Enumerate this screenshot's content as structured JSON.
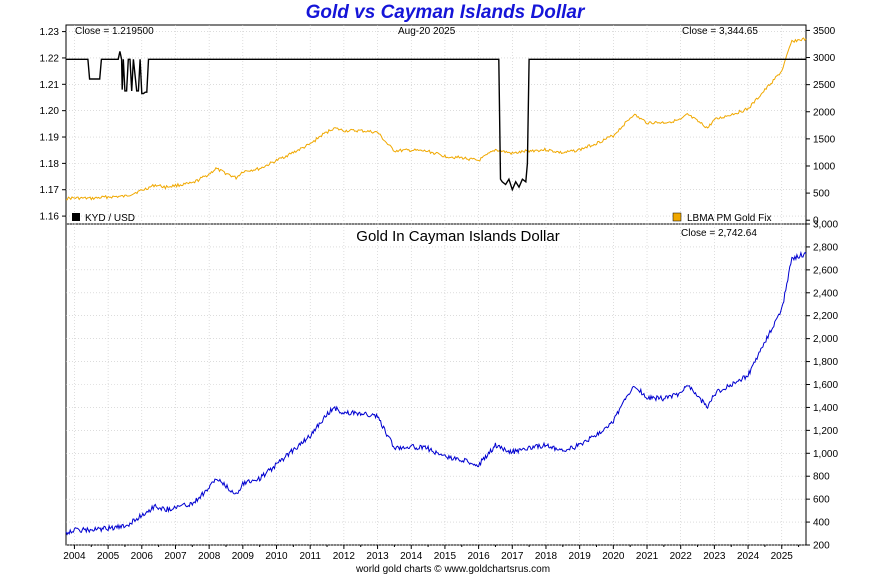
{
  "header": {
    "title": "Gold vs Cayman Islands Dollar",
    "footer": "world gold charts © www.goldchartsrus.com"
  },
  "top_panel": {
    "close_left": "Close = 1.219500",
    "date": "Aug-20  2025",
    "close_right": "Close = 3,344.65",
    "legend_left": "KYD / USD",
    "legend_right": "LBMA PM Gold Fix"
  },
  "bottom_panel": {
    "title": "Gold In Cayman Islands Dollar",
    "close": "Close = 2,742.64"
  },
  "chart_data": [
    {
      "type": "line",
      "panel": "top",
      "title": "Gold vs Cayman Islands Dollar",
      "x_ticks": [
        "2004",
        "2005",
        "2006",
        "2007",
        "2008",
        "2009",
        "2010",
        "2011",
        "2012",
        "2013",
        "2014",
        "2015",
        "2016",
        "2017",
        "2018",
        "2019",
        "2020",
        "2021",
        "2022",
        "2023",
        "2024",
        "2025"
      ],
      "xlim": [
        2003.75,
        2025.72
      ],
      "left_axis": {
        "ylim": [
          1.157,
          1.2325
        ],
        "ticks": [
          "1.16",
          "1.17",
          "1.18",
          "1.19",
          "1.20",
          "1.21",
          "1.22",
          "1.23"
        ]
      },
      "right_axis": {
        "ylim": [
          -70,
          3600
        ],
        "ticks": [
          "0",
          "500",
          "1000",
          "1500",
          "2000",
          "2500",
          "3000",
          "3500"
        ]
      },
      "series": [
        {
          "name": "KYD / USD",
          "axis": "left",
          "color": "#000000",
          "x": [
            2003.75,
            2004.4,
            2004.45,
            2004.75,
            2004.8,
            2005.3,
            2005.35,
            2005.4,
            2005.42,
            2005.45,
            2005.5,
            2005.55,
            2005.6,
            2005.65,
            2005.7,
            2005.75,
            2005.85,
            2005.9,
            2005.95,
            2006.0,
            2006.05,
            2006.1,
            2006.15,
            2006.2,
            2006.3,
            2016.6,
            2016.65,
            2016.7,
            2016.8,
            2016.9,
            2017.0,
            2017.1,
            2017.2,
            2017.3,
            2017.4,
            2017.45,
            2017.5,
            2025.72
          ],
          "y": [
            1.2195,
            1.2195,
            1.212,
            1.212,
            1.2195,
            1.2195,
            1.2225,
            1.2195,
            1.208,
            1.2195,
            1.2075,
            1.2075,
            1.2195,
            1.2195,
            1.2075,
            1.2195,
            1.2075,
            1.2075,
            1.2195,
            1.2065,
            1.2065,
            1.207,
            1.207,
            1.2195,
            1.2195,
            1.2195,
            1.174,
            1.173,
            1.172,
            1.174,
            1.17,
            1.173,
            1.171,
            1.174,
            1.173,
            1.18,
            1.2195,
            1.2195
          ]
        },
        {
          "name": "LBMA PM Gold Fix",
          "axis": "right",
          "color": "#f0a800",
          "x": [
            2003.75,
            2004,
            2004.5,
            2005,
            2005.5,
            2006,
            2006.4,
            2006.7,
            2007,
            2007.5,
            2008,
            2008.2,
            2008.8,
            2009,
            2009.5,
            2010,
            2010.5,
            2011,
            2011.3,
            2011.7,
            2012,
            2012.5,
            2013,
            2013.3,
            2013.5,
            2014,
            2014.5,
            2015,
            2015.5,
            2016,
            2016.5,
            2017,
            2017.5,
            2018,
            2018.5,
            2019,
            2019.5,
            2020,
            2020.6,
            2021,
            2021.5,
            2022,
            2022.2,
            2022.8,
            2023,
            2023.5,
            2024,
            2024.5,
            2025,
            2025.3,
            2025.72
          ],
          "y": [
            400,
            410,
            400,
            430,
            440,
            550,
            650,
            610,
            640,
            680,
            850,
            950,
            780,
            900,
            950,
            1100,
            1250,
            1400,
            1550,
            1700,
            1650,
            1650,
            1620,
            1400,
            1280,
            1290,
            1270,
            1180,
            1150,
            1100,
            1300,
            1230,
            1280,
            1300,
            1240,
            1300,
            1420,
            1560,
            1950,
            1800,
            1800,
            1850,
            1950,
            1700,
            1850,
            1950,
            2050,
            2400,
            2750,
            3300,
            3344.65
          ]
        }
      ]
    },
    {
      "type": "line",
      "panel": "bottom",
      "title": "Gold In Cayman Islands Dollar",
      "xlim": [
        2003.75,
        2025.72
      ],
      "ylim": [
        200,
        3000
      ],
      "y_ticks": [
        "200",
        "400",
        "600",
        "800",
        "1,000",
        "1,200",
        "1,400",
        "1,600",
        "1,800",
        "2,000",
        "2,200",
        "2,400",
        "2,600",
        "2,800",
        "3,000"
      ],
      "series": [
        {
          "name": "Gold In Cayman Islands Dollar",
          "color": "#0000d0",
          "x": [
            2003.75,
            2004,
            2004.5,
            2005,
            2005.5,
            2006,
            2006.4,
            2006.7,
            2007,
            2007.5,
            2008,
            2008.2,
            2008.8,
            2009,
            2009.5,
            2010,
            2010.5,
            2011,
            2011.3,
            2011.7,
            2012,
            2012.5,
            2013,
            2013.3,
            2013.5,
            2014,
            2014.5,
            2015,
            2015.5,
            2016,
            2016.5,
            2017,
            2017.5,
            2018,
            2018.5,
            2019,
            2019.5,
            2020,
            2020.6,
            2021,
            2021.5,
            2022,
            2022.2,
            2022.8,
            2023,
            2023.5,
            2024,
            2024.5,
            2025,
            2025.3,
            2025.72
          ],
          "y": [
            310,
            330,
            330,
            345,
            360,
            460,
            540,
            510,
            530,
            560,
            700,
            780,
            640,
            740,
            780,
            900,
            1030,
            1150,
            1270,
            1400,
            1350,
            1350,
            1320,
            1150,
            1050,
            1060,
            1040,
            970,
            940,
            900,
            1070,
            1010,
            1050,
            1070,
            1020,
            1070,
            1160,
            1280,
            1600,
            1480,
            1480,
            1520,
            1600,
            1400,
            1520,
            1600,
            1680,
            1970,
            2250,
            2700,
            2742.64
          ]
        }
      ]
    }
  ]
}
